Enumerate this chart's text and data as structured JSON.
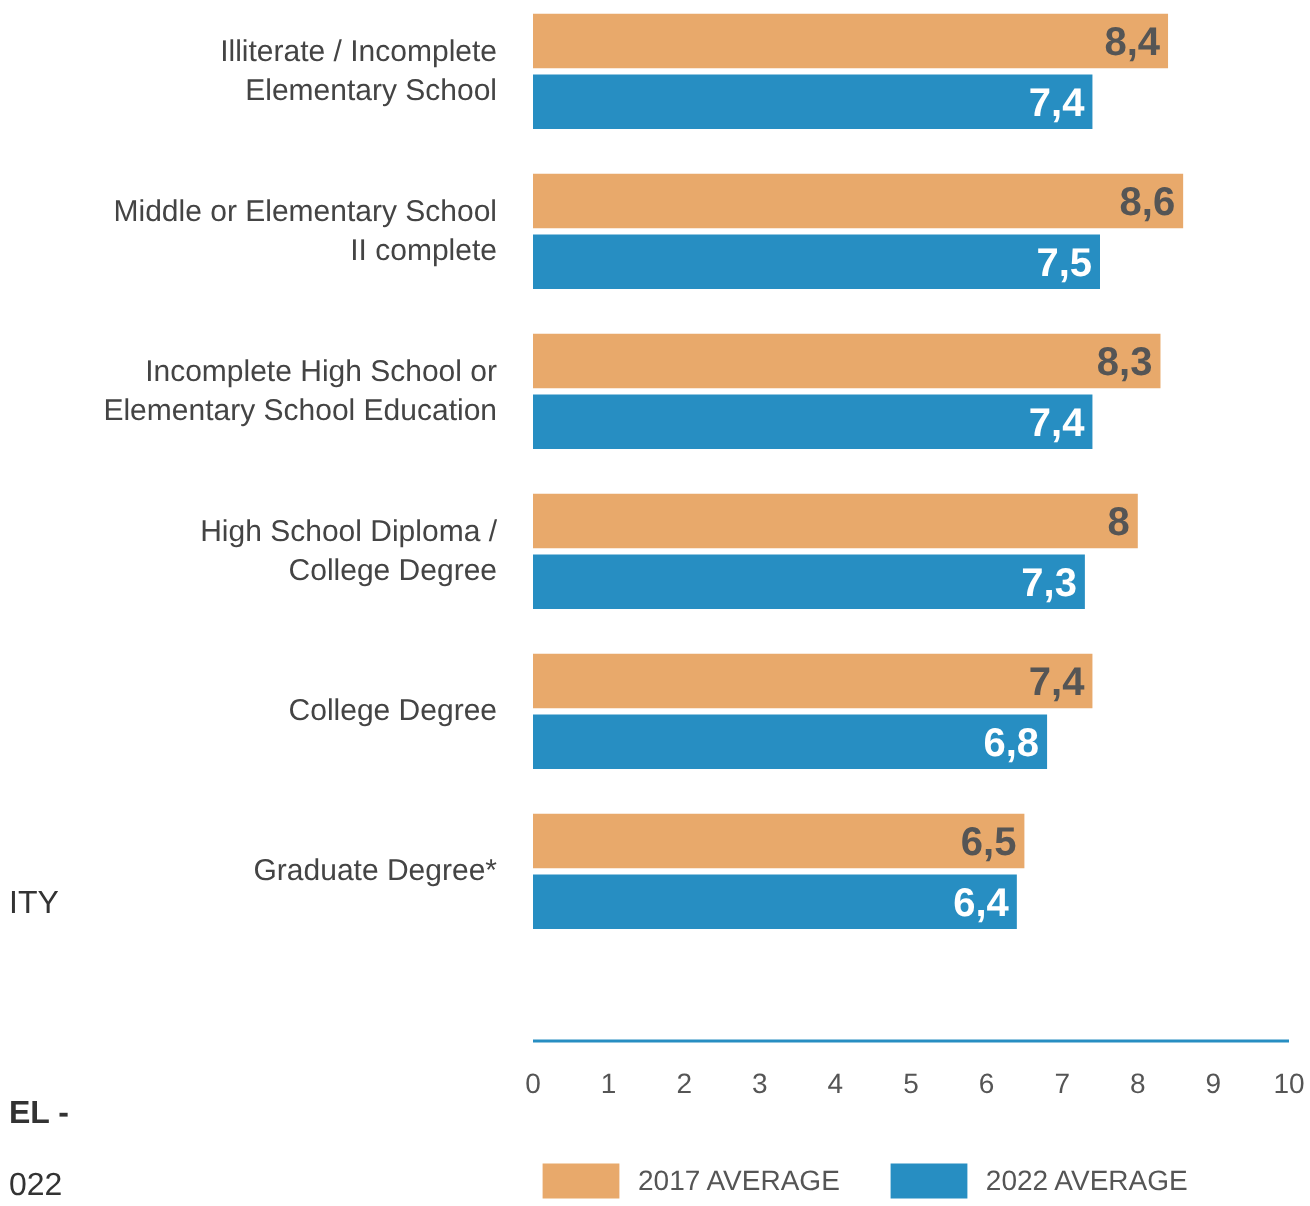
{
  "chart_data": {
    "type": "bar",
    "orientation": "horizontal",
    "categories": [
      "Illiterate / Incomplete Elementary School",
      "Middle or Elementary School II complete",
      "Incomplete High School or Elementary School Education",
      "High School Diploma / College Degree",
      "College Degree",
      "Graduate Degree*"
    ],
    "series": [
      {
        "name": "2017 AVERAGE",
        "color": "#e8a96b",
        "values": [
          8.4,
          8.6,
          8.3,
          8.0,
          7.4,
          6.5
        ],
        "value_labels": [
          "8,4",
          "8,6",
          "8,3",
          "8",
          "7,4",
          "6,5"
        ]
      },
      {
        "name": "2022 AVERAGE",
        "color": "#278ec2",
        "values": [
          7.4,
          7.5,
          7.4,
          7.3,
          6.8,
          6.4
        ],
        "value_labels": [
          "7,4",
          "7,5",
          "7,4",
          "7,3",
          "6,8",
          "6,4"
        ]
      }
    ],
    "xlim": [
      0,
      10
    ],
    "xticks": [
      0,
      1,
      2,
      3,
      4,
      5,
      6,
      7,
      8,
      9,
      10
    ],
    "grid": false,
    "legend": "bottom",
    "annotations": [
      "ITY",
      "EL -",
      "022"
    ]
  }
}
